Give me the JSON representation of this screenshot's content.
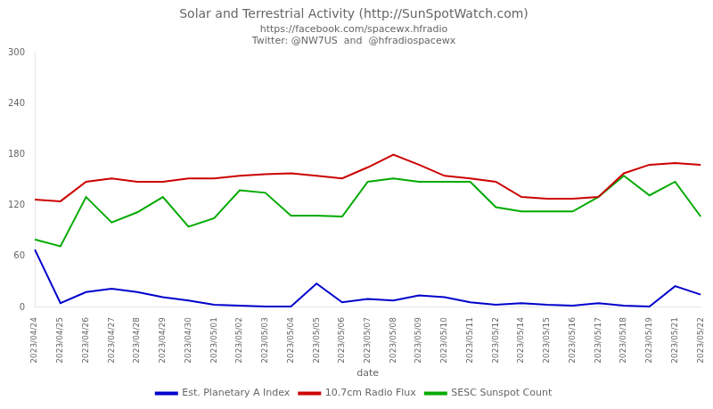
{
  "chart_data": {
    "type": "line",
    "title": "Solar and Terrestrial Activity (http://SunSpotWatch.com)",
    "subtitle": [
      "https://facebook.com/spacewx.hfradio",
      "Twitter: @NW7US  and  @hfradiospacewx"
    ],
    "x_label": "date",
    "categories": [
      "2023/04/24",
      "2023/04/25",
      "2023/04/26",
      "2023/04/27",
      "2023/04/28",
      "2023/04/29",
      "2023/04/30",
      "2023/05/01",
      "2023/05/02",
      "2023/05/03",
      "2023/05/04",
      "2023/05/05",
      "2023/05/06",
      "2023/05/07",
      "2023/05/08",
      "2023/05/09",
      "2023/05/10",
      "2023/05/11",
      "2023/05/12",
      "2023/05/14",
      "2023/05/15",
      "2023/05/16",
      "2023/05/17",
      "2023/05/18",
      "2023/05/19",
      "2023/05/21",
      "2023/05/22"
    ],
    "series": [
      {
        "name": "Est. Planetary A Index",
        "color": "#0000cc",
        "values": [
          68,
          5,
          18,
          22,
          18,
          12,
          8,
          3,
          2,
          1,
          1,
          28,
          6,
          10,
          8,
          14,
          12,
          6,
          3,
          5,
          3,
          2,
          5,
          2,
          1,
          25,
          15
        ]
      },
      {
        "name": "10.7cm Radio Flux",
        "color": "#cc0000",
        "values": [
          127,
          125,
          148,
          152,
          148,
          148,
          152,
          152,
          155,
          157,
          158,
          155,
          152,
          165,
          180,
          168,
          155,
          152,
          148,
          130,
          128,
          128,
          130,
          158,
          168,
          170,
          168
        ]
      },
      {
        "name": "SESC Sunspot Count",
        "color": "#00aa00",
        "values": [
          80,
          72,
          130,
          100,
          112,
          130,
          95,
          105,
          138,
          135,
          108,
          108,
          107,
          148,
          152,
          148,
          148,
          148,
          118,
          113,
          113,
          113,
          130,
          155,
          132,
          148,
          107
        ]
      }
    ],
    "ylim": [
      0,
      300
    ],
    "yticks": [
      0,
      60,
      120,
      180,
      240,
      300
    ],
    "grid": false,
    "legend": "bottom"
  }
}
